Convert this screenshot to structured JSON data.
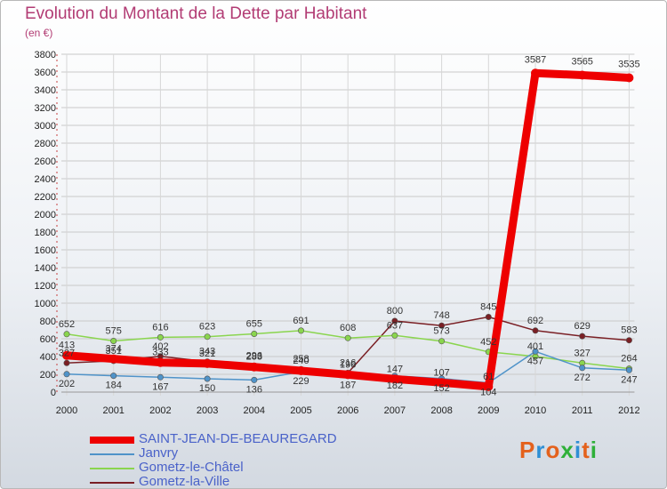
{
  "title": "Evolution du Montant de la Dette par Habitant",
  "subtitle": "(en €)",
  "logo": {
    "text": "Proxiti",
    "colors": [
      "#e4611c",
      "#2f8fd4",
      "#e4611c",
      "#2fb039",
      "#2f8fd4",
      "#e4611c",
      "#2fb039"
    ]
  },
  "chart_data": {
    "type": "line",
    "title": "Evolution du Montant de la Dette par Habitant",
    "ylabel": "(en €)",
    "xlabel": "",
    "ylim": [
      0,
      3800
    ],
    "yticks": [
      0,
      200,
      400,
      600,
      800,
      1000,
      1200,
      1400,
      1600,
      1800,
      2000,
      2200,
      2400,
      2600,
      2800,
      3000,
      3200,
      3400,
      3600,
      3800
    ],
    "categories": [
      "2000",
      "2001",
      "2002",
      "2003",
      "2004",
      "2005",
      "2006",
      "2007",
      "2008",
      "2009",
      "2010",
      "2011",
      "2012"
    ],
    "series": [
      {
        "name": "SAINT-JEAN-DE-BEAUREGARD",
        "color": "#ee0000",
        "values": [
          413,
          374,
          333,
          321,
          283,
          240,
          196,
          147,
          107,
          61,
          3587,
          3565,
          3535
        ]
      },
      {
        "name": "Janvry",
        "color": "#4f93c9",
        "values": [
          202,
          184,
          167,
          150,
          136,
          229,
          187,
          182,
          152,
          104,
          457,
          272,
          247
        ]
      },
      {
        "name": "Gometz-le-Châtel",
        "color": "#8ad54e",
        "values": [
          652,
          575,
          616,
          623,
          655,
          691,
          608,
          637,
          573,
          452,
          401,
          327,
          264
        ]
      },
      {
        "name": "Gometz-la-Ville",
        "color": "#7a1f24",
        "values": [
          327,
          351,
          402,
          343,
          296,
          258,
          216,
          800,
          748,
          845,
          692,
          629,
          583
        ]
      }
    ]
  }
}
